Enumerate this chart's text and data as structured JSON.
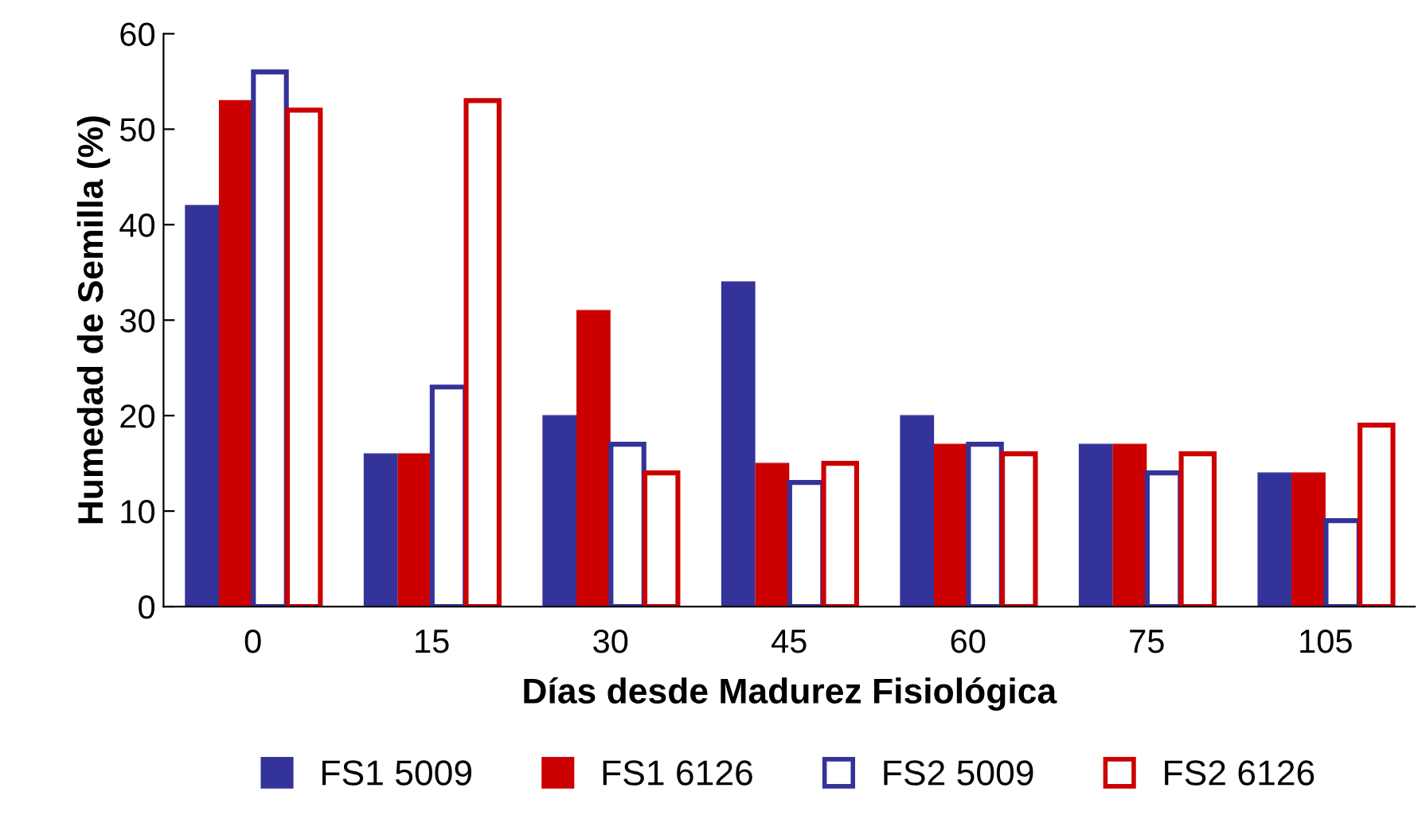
{
  "chart_data": {
    "type": "bar",
    "xlabel": "Días desde Madurez Fisiológica",
    "ylabel": "Humedad de Semilla (%)",
    "categories": [
      "0",
      "15",
      "30",
      "45",
      "60",
      "75",
      "105"
    ],
    "series": [
      {
        "name": "FS1 5009",
        "color": "#333399",
        "values": [
          42,
          16,
          20,
          34,
          20,
          17,
          14
        ]
      },
      {
        "name": "FS1 6126",
        "color": "#cc0000",
        "values": [
          53,
          16,
          31,
          15,
          17,
          17,
          14
        ]
      },
      {
        "name": "FS2 5009",
        "color": "#333399",
        "values": [
          56,
          23,
          17,
          13,
          17,
          14,
          9
        ]
      },
      {
        "name": "FS2 6126",
        "color": "#cc0000",
        "values": [
          52,
          53,
          14,
          15,
          16,
          16,
          19
        ]
      }
    ],
    "ylim": [
      0,
      60
    ],
    "yticks": [
      0,
      10,
      20,
      30,
      40,
      50,
      60
    ],
    "grid": false,
    "legend": "bottom"
  }
}
